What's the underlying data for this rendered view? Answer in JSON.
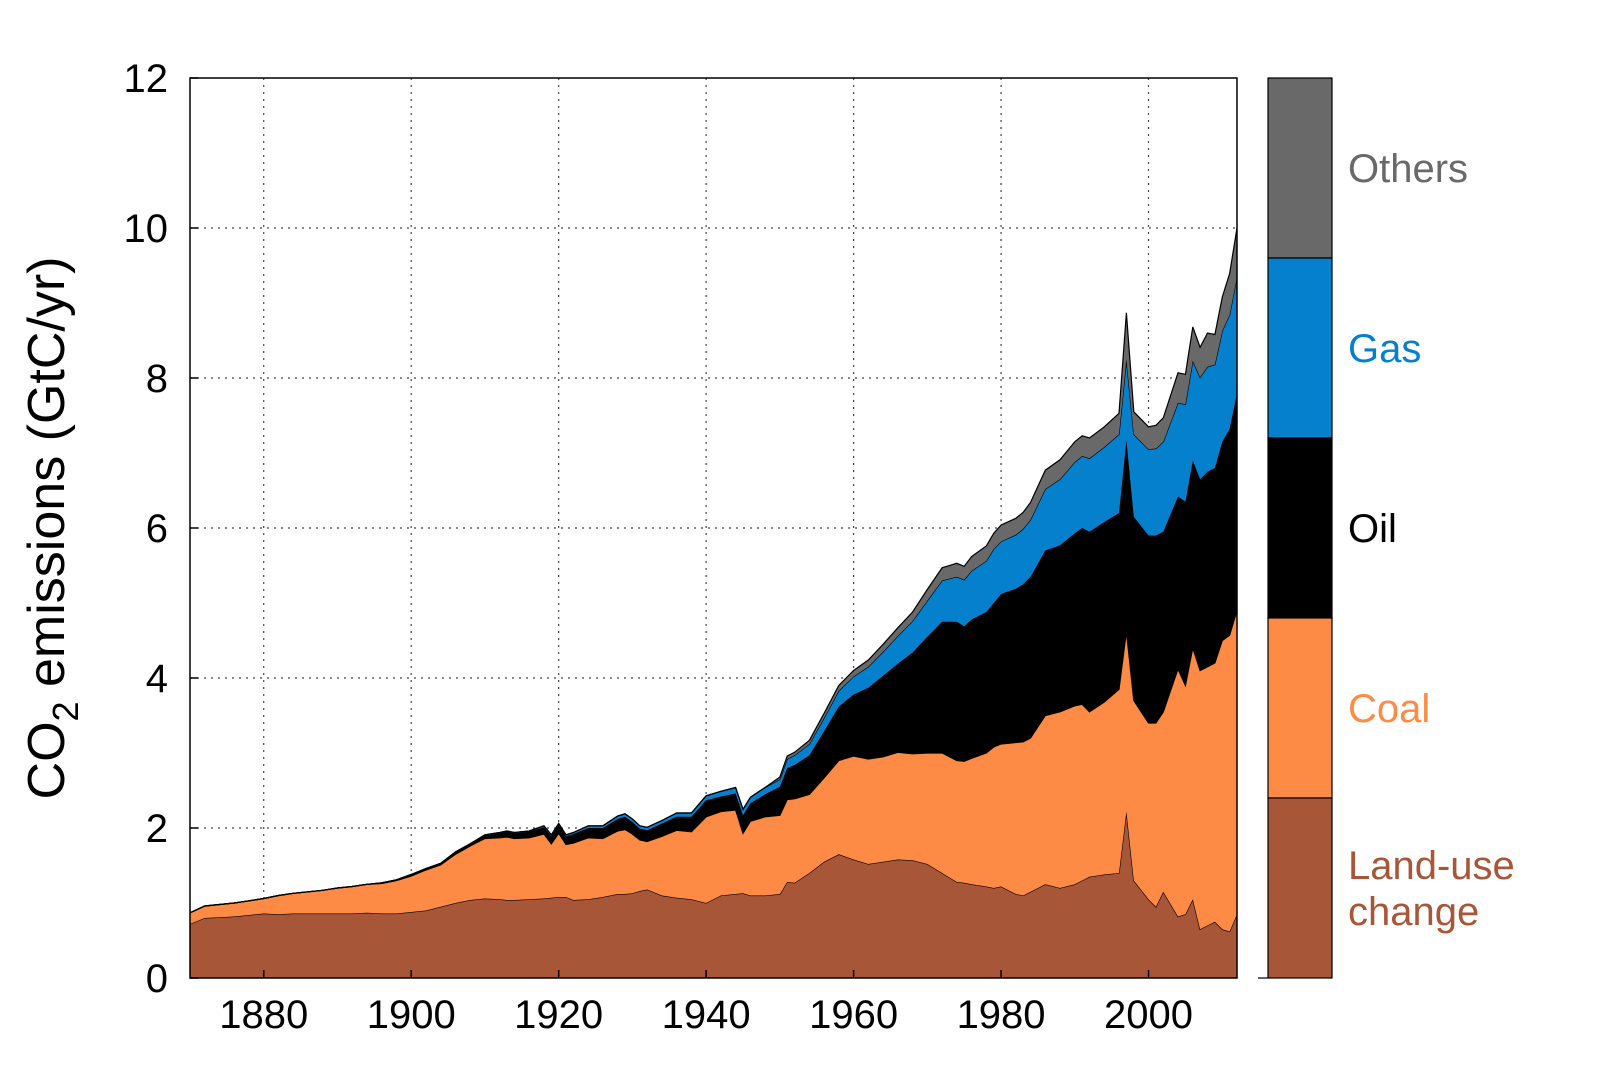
{
  "chart_data": {
    "type": "area",
    "stacked": true,
    "title": "",
    "xlabel": "",
    "ylabel": "CO",
    "ylabel_subscript": "2",
    "ylabel_rest": " emissions (GtC/yr)",
    "xlim": [
      1870,
      2012
    ],
    "ylim": [
      0,
      12
    ],
    "x_ticks": [
      1880,
      1900,
      1920,
      1940,
      1960,
      1980,
      2000
    ],
    "y_ticks": [
      0,
      2,
      4,
      6,
      8,
      10,
      12
    ],
    "grid": true,
    "legend_position": "right (stacked colour bar)",
    "x": [
      1870,
      1872,
      1874,
      1876,
      1878,
      1880,
      1882,
      1884,
      1886,
      1888,
      1890,
      1892,
      1894,
      1896,
      1898,
      1900,
      1902,
      1904,
      1906,
      1908,
      1910,
      1912,
      1913,
      1914,
      1916,
      1918,
      1919,
      1920,
      1921,
      1922,
      1924,
      1926,
      1928,
      1929,
      1930,
      1931,
      1932,
      1934,
      1936,
      1938,
      1940,
      1942,
      1944,
      1945,
      1946,
      1948,
      1950,
      1951,
      1952,
      1954,
      1956,
      1958,
      1960,
      1962,
      1964,
      1966,
      1968,
      1970,
      1972,
      1974,
      1975,
      1976,
      1978,
      1979,
      1980,
      1982,
      1983,
      1984,
      1986,
      1988,
      1990,
      1991,
      1992,
      1994,
      1996,
      1997,
      1998,
      2000,
      2001,
      2002,
      2004,
      2005,
      2006,
      2007,
      2008,
      2009,
      2010,
      2011,
      2012
    ],
    "series": [
      {
        "name": "Land-use change",
        "color": "#a85638",
        "values": [
          0.72,
          0.8,
          0.81,
          0.82,
          0.84,
          0.86,
          0.85,
          0.86,
          0.86,
          0.86,
          0.86,
          0.86,
          0.87,
          0.86,
          0.86,
          0.88,
          0.9,
          0.95,
          1.0,
          1.04,
          1.06,
          1.05,
          1.04,
          1.04,
          1.05,
          1.06,
          1.07,
          1.08,
          1.08,
          1.04,
          1.05,
          1.08,
          1.12,
          1.12,
          1.13,
          1.16,
          1.18,
          1.1,
          1.07,
          1.05,
          1.0,
          1.1,
          1.12,
          1.13,
          1.1,
          1.1,
          1.12,
          1.28,
          1.27,
          1.4,
          1.55,
          1.65,
          1.58,
          1.52,
          1.55,
          1.58,
          1.57,
          1.52,
          1.4,
          1.28,
          1.27,
          1.25,
          1.22,
          1.2,
          1.22,
          1.12,
          1.1,
          1.15,
          1.25,
          1.2,
          1.25,
          1.3,
          1.35,
          1.38,
          1.4,
          2.22,
          1.3,
          1.05,
          0.95,
          1.15,
          0.82,
          0.85,
          1.05,
          0.65,
          0.7,
          0.75,
          0.65,
          0.62,
          0.85
        ]
      },
      {
        "name": "Coal",
        "color": "#fd8b45",
        "values": [
          0.15,
          0.16,
          0.17,
          0.18,
          0.19,
          0.2,
          0.25,
          0.27,
          0.29,
          0.31,
          0.34,
          0.36,
          0.38,
          0.4,
          0.44,
          0.48,
          0.54,
          0.56,
          0.65,
          0.72,
          0.8,
          0.82,
          0.84,
          0.82,
          0.82,
          0.86,
          0.72,
          0.85,
          0.7,
          0.76,
          0.82,
          0.78,
          0.84,
          0.86,
          0.79,
          0.68,
          0.64,
          0.79,
          0.9,
          0.9,
          1.15,
          1.12,
          1.12,
          0.8,
          0.99,
          1.05,
          1.05,
          1.1,
          1.12,
          1.05,
          1.12,
          1.25,
          1.38,
          1.4,
          1.4,
          1.43,
          1.42,
          1.48,
          1.6,
          1.62,
          1.62,
          1.68,
          1.78,
          1.88,
          1.9,
          2.02,
          2.05,
          2.05,
          2.25,
          2.35,
          2.38,
          2.35,
          2.2,
          2.3,
          2.45,
          2.4,
          2.4,
          2.35,
          2.45,
          2.4,
          3.3,
          3.05,
          3.35,
          3.45,
          3.45,
          3.45,
          3.85,
          3.95,
          4.05
        ]
      },
      {
        "name": "Oil",
        "color": "#000000",
        "values": [
          0.0,
          0.0,
          0.0,
          0.0,
          0.0,
          0.0,
          0.0,
          0.0,
          0.0,
          0.0,
          0.0,
          0.0,
          0.0,
          0.01,
          0.01,
          0.02,
          0.02,
          0.02,
          0.03,
          0.03,
          0.04,
          0.06,
          0.07,
          0.07,
          0.08,
          0.09,
          0.1,
          0.11,
          0.11,
          0.12,
          0.13,
          0.14,
          0.16,
          0.17,
          0.16,
          0.15,
          0.15,
          0.17,
          0.18,
          0.2,
          0.22,
          0.2,
          0.22,
          0.24,
          0.24,
          0.3,
          0.38,
          0.42,
          0.45,
          0.52,
          0.62,
          0.72,
          0.82,
          0.95,
          1.08,
          1.18,
          1.35,
          1.55,
          1.75,
          1.85,
          1.8,
          1.85,
          1.88,
          1.92,
          2.0,
          2.05,
          2.1,
          2.15,
          2.2,
          2.22,
          2.3,
          2.35,
          2.4,
          2.4,
          2.35,
          2.55,
          2.45,
          2.5,
          2.5,
          2.4,
          2.3,
          2.45,
          2.5,
          2.55,
          2.6,
          2.6,
          2.65,
          2.75,
          2.9
        ]
      },
      {
        "name": "Gas",
        "color": "#0580cc",
        "values": [
          0.0,
          0.0,
          0.0,
          0.0,
          0.0,
          0.0,
          0.0,
          0.0,
          0.0,
          0.0,
          0.0,
          0.0,
          0.0,
          0.0,
          0.0,
          0.0,
          0.0,
          0.0,
          0.0,
          0.0,
          0.01,
          0.01,
          0.01,
          0.01,
          0.01,
          0.02,
          0.02,
          0.02,
          0.02,
          0.02,
          0.03,
          0.03,
          0.04,
          0.04,
          0.04,
          0.04,
          0.04,
          0.04,
          0.05,
          0.05,
          0.06,
          0.07,
          0.08,
          0.08,
          0.08,
          0.09,
          0.1,
          0.12,
          0.13,
          0.15,
          0.18,
          0.21,
          0.24,
          0.28,
          0.32,
          0.37,
          0.42,
          0.48,
          0.55,
          0.6,
          0.62,
          0.65,
          0.68,
          0.72,
          0.7,
          0.72,
          0.74,
          0.76,
          0.82,
          0.88,
          0.95,
          0.96,
          0.98,
          1.0,
          1.05,
          1.08,
          1.1,
          1.15,
          1.16,
          1.2,
          1.25,
          1.3,
          1.33,
          1.36,
          1.4,
          1.38,
          1.48,
          1.52,
          1.55
        ]
      },
      {
        "name": "Others",
        "color": "#696969",
        "values": [
          0.0,
          0.0,
          0.0,
          0.0,
          0.0,
          0.0,
          0.0,
          0.0,
          0.0,
          0.0,
          0.0,
          0.0,
          0.0,
          0.0,
          0.0,
          0.0,
          0.0,
          0.0,
          0.0,
          0.0,
          0.0,
          0.0,
          0.0,
          0.0,
          0.0,
          0.0,
          0.0,
          0.0,
          0.0,
          0.0,
          0.0,
          0.0,
          0.0,
          0.0,
          0.0,
          0.0,
          0.0,
          0.0,
          0.0,
          0.0,
          0.0,
          0.0,
          0.0,
          0.0,
          0.0,
          0.0,
          0.03,
          0.04,
          0.04,
          0.05,
          0.06,
          0.07,
          0.08,
          0.09,
          0.1,
          0.11,
          0.12,
          0.15,
          0.17,
          0.18,
          0.18,
          0.19,
          0.2,
          0.21,
          0.22,
          0.22,
          0.22,
          0.23,
          0.25,
          0.26,
          0.27,
          0.27,
          0.27,
          0.27,
          0.28,
          0.62,
          0.3,
          0.3,
          0.31,
          0.32,
          0.4,
          0.4,
          0.45,
          0.4,
          0.45,
          0.4,
          0.45,
          0.55,
          0.65
        ]
      }
    ],
    "legend": [
      {
        "lines": [
          "Others"
        ],
        "color": "#696969",
        "text_color": "#696969"
      },
      {
        "lines": [
          "Gas"
        ],
        "color": "#0580cc",
        "text_color": "#0580cc"
      },
      {
        "lines": [
          "Oil"
        ],
        "color": "#000000",
        "text_color": "#000000"
      },
      {
        "lines": [
          "Coal"
        ],
        "color": "#fd8b45",
        "text_color": "#fd8b45"
      },
      {
        "lines": [
          "Land-use",
          "change"
        ],
        "color": "#a85638",
        "text_color": "#a85638"
      }
    ]
  }
}
